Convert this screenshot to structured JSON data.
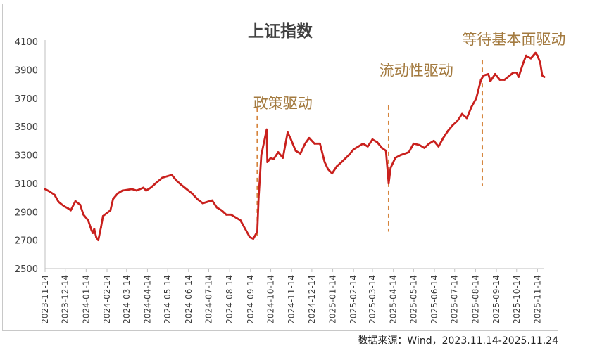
{
  "chart_data": {
    "type": "line",
    "title": "上证指数",
    "xlabel": "",
    "ylabel": "",
    "ylim": [
      2500,
      4100
    ],
    "yticks": [
      2500,
      2700,
      2900,
      3100,
      3300,
      3500,
      3700,
      3900,
      4100
    ],
    "x_ticks": [
      "2023-11-14",
      "2023-12-14",
      "2024-01-14",
      "2024-02-14",
      "2024-03-14",
      "2024-04-14",
      "2024-05-14",
      "2024-06-14",
      "2024-07-14",
      "2024-08-14",
      "2024-09-14",
      "2024-10-14",
      "2024-11-14",
      "2024-12-14",
      "2025-01-14",
      "2025-02-14",
      "2025-03-14",
      "2025-04-14",
      "2025-05-14",
      "2025-06-14",
      "2025-07-14",
      "2025-08-14",
      "2025-09-14",
      "2025-10-14",
      "2025-11-14"
    ],
    "xlim": [
      "2023-11-14",
      "2025-11-24"
    ],
    "line_color": "#c9201d",
    "grid": false,
    "series": [
      {
        "x": [
          "2023-11-14",
          "2023-11-20",
          "2023-11-28",
          "2023-12-04",
          "2023-12-12",
          "2023-12-18",
          "2023-12-22",
          "2023-12-29",
          "2024-01-05",
          "2024-01-10",
          "2024-01-17",
          "2024-01-22",
          "2024-01-24",
          "2024-01-26",
          "2024-01-29",
          "2024-02-01",
          "2024-02-05",
          "2024-02-08",
          "2024-02-19",
          "2024-02-23",
          "2024-03-01",
          "2024-03-08",
          "2024-03-15",
          "2024-03-22",
          "2024-03-29",
          "2024-04-08",
          "2024-04-12",
          "2024-04-19",
          "2024-04-26",
          "2024-05-06",
          "2024-05-13",
          "2024-05-20",
          "2024-05-27",
          "2024-06-03",
          "2024-06-11",
          "2024-06-19",
          "2024-06-27",
          "2024-07-05",
          "2024-07-12",
          "2024-07-19",
          "2024-07-26",
          "2024-08-02",
          "2024-08-09",
          "2024-08-16",
          "2024-08-23",
          "2024-08-30",
          "2024-09-06",
          "2024-09-13",
          "2024-09-18",
          "2024-09-24",
          "2024-09-26",
          "2024-09-30",
          "2024-10-08",
          "2024-10-09",
          "2024-10-14",
          "2024-10-18",
          "2024-10-25",
          "2024-11-01",
          "2024-11-08",
          "2024-11-13",
          "2024-11-20",
          "2024-11-27",
          "2024-12-04",
          "2024-12-10",
          "2024-12-18",
          "2024-12-26",
          "2025-01-02",
          "2025-01-07",
          "2025-01-13",
          "2025-01-20",
          "2025-01-27",
          "2025-02-07",
          "2025-02-14",
          "2025-02-21",
          "2025-02-28",
          "2025-03-07",
          "2025-03-14",
          "2025-03-21",
          "2025-03-28",
          "2025-04-03",
          "2025-04-07",
          "2025-04-10",
          "2025-04-17",
          "2025-04-25",
          "2025-05-07",
          "2025-05-14",
          "2025-05-23",
          "2025-05-30",
          "2025-06-06",
          "2025-06-13",
          "2025-06-20",
          "2025-06-27",
          "2025-07-04",
          "2025-07-11",
          "2025-07-18",
          "2025-07-25",
          "2025-08-01",
          "2025-08-08",
          "2025-08-15",
          "2025-08-22",
          "2025-08-26",
          "2025-09-02",
          "2025-09-05",
          "2025-09-12",
          "2025-09-19",
          "2025-09-26",
          "2025-10-09",
          "2025-10-14",
          "2025-10-17",
          "2025-10-24",
          "2025-10-28",
          "2025-11-04",
          "2025-11-11",
          "2025-11-14",
          "2025-11-18",
          "2025-11-21",
          "2025-11-24"
        ],
        "values": [
          3060,
          3045,
          3020,
          2970,
          2940,
          2925,
          2910,
          2975,
          2950,
          2880,
          2840,
          2770,
          2750,
          2780,
          2720,
          2700,
          2790,
          2870,
          2910,
          2990,
          3030,
          3050,
          3055,
          3060,
          3050,
          3070,
          3050,
          3070,
          3100,
          3140,
          3150,
          3160,
          3120,
          3090,
          3060,
          3030,
          2990,
          2960,
          2970,
          2980,
          2930,
          2910,
          2880,
          2880,
          2860,
          2840,
          2780,
          2720,
          2710,
          2760,
          3000,
          3300,
          3480,
          3250,
          3280,
          3270,
          3320,
          3280,
          3460,
          3410,
          3330,
          3310,
          3380,
          3420,
          3380,
          3380,
          3250,
          3200,
          3170,
          3220,
          3250,
          3300,
          3340,
          3360,
          3380,
          3360,
          3410,
          3390,
          3350,
          3330,
          3100,
          3210,
          3280,
          3300,
          3320,
          3380,
          3370,
          3350,
          3380,
          3400,
          3360,
          3420,
          3470,
          3510,
          3540,
          3590,
          3560,
          3640,
          3700,
          3830,
          3860,
          3870,
          3820,
          3870,
          3830,
          3830,
          3880,
          3880,
          3850,
          3950,
          4000,
          3980,
          4020,
          4000,
          3950,
          3860,
          3850
        ]
      }
    ],
    "annotations": [
      {
        "text": "政策驱动",
        "x": "2024-09-24",
        "text_x": "2024-11-01",
        "text_y": 3630,
        "line_top": 3630,
        "line_bottom": 2700
      },
      {
        "text": "流动性驱动",
        "x": "2025-04-07",
        "text_x": "2025-05-18",
        "text_y": 3860,
        "line_top": 3650,
        "line_bottom": 2760
      },
      {
        "text": "等待基本面驱动",
        "x": "2025-08-24",
        "text_x": "2025-10-10",
        "text_y": 4080,
        "line_top": 3970,
        "line_bottom": 3080
      }
    ],
    "annotation_color": "#a37a3f",
    "dash_color": "#d5843c"
  },
  "source_note": "数据来源：Wind，2023.11.14-2025.11.24"
}
